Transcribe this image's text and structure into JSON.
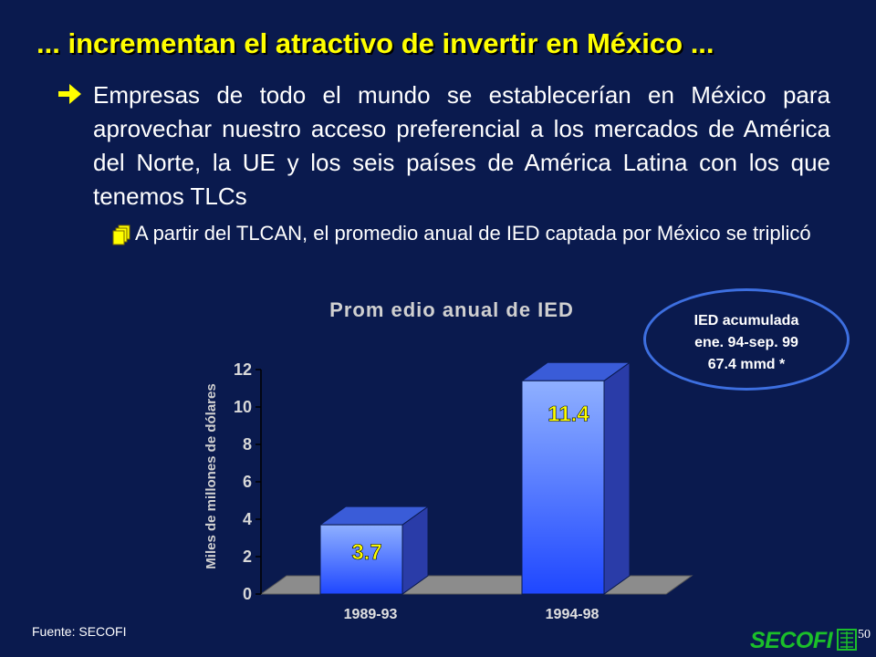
{
  "title": "... incrementan el atractivo de invertir en México ...",
  "bullets": {
    "main_icon": "arrow-right-icon",
    "main_text": "Empresas de todo el mundo se establecerían en México para aprovechar nuestro acceso preferencial a los mercados de América del Norte, la UE y los seis países de América Latina con los que tenemos TLCs",
    "sub_icon": "stacked-pages-icon",
    "sub_text": "A partir del TLCAN, el promedio anual de IED captada por México se triplicó"
  },
  "callout": {
    "line1": "IED acumulada",
    "line2": "ene. 94-sep. 99",
    "line3": "67.4 mmd *"
  },
  "footer": {
    "source": "Fuente: SECOFI",
    "page_number": "50",
    "logo_text": "SECOFI"
  },
  "colors": {
    "background": "#0a1a4e",
    "title": "#ffff00",
    "bar_front_top": "#8fb0ff",
    "bar_front_bottom": "#1f47ff",
    "bar_side": "#2a3ca8",
    "bar_top": "#3a5cd8",
    "data_label": "#ffff00",
    "floor": "#8c8c8c",
    "ellipse": "#3d6fe0",
    "logo": "#1bbf2a"
  },
  "chart_data": {
    "type": "bar",
    "title": "Prom edio anual de IED",
    "ylabel": "Miles de millones de dólares",
    "xlabel": "",
    "categories": [
      "1989-93",
      "1994-98"
    ],
    "values": [
      3.7,
      11.4
    ],
    "data_labels": [
      "3.7",
      "11.4"
    ],
    "ylim": [
      0,
      12
    ],
    "yticks": [
      "0",
      "2",
      "4",
      "6",
      "8",
      "10",
      "12"
    ],
    "three_d": true,
    "grid": false,
    "legend": "none"
  }
}
